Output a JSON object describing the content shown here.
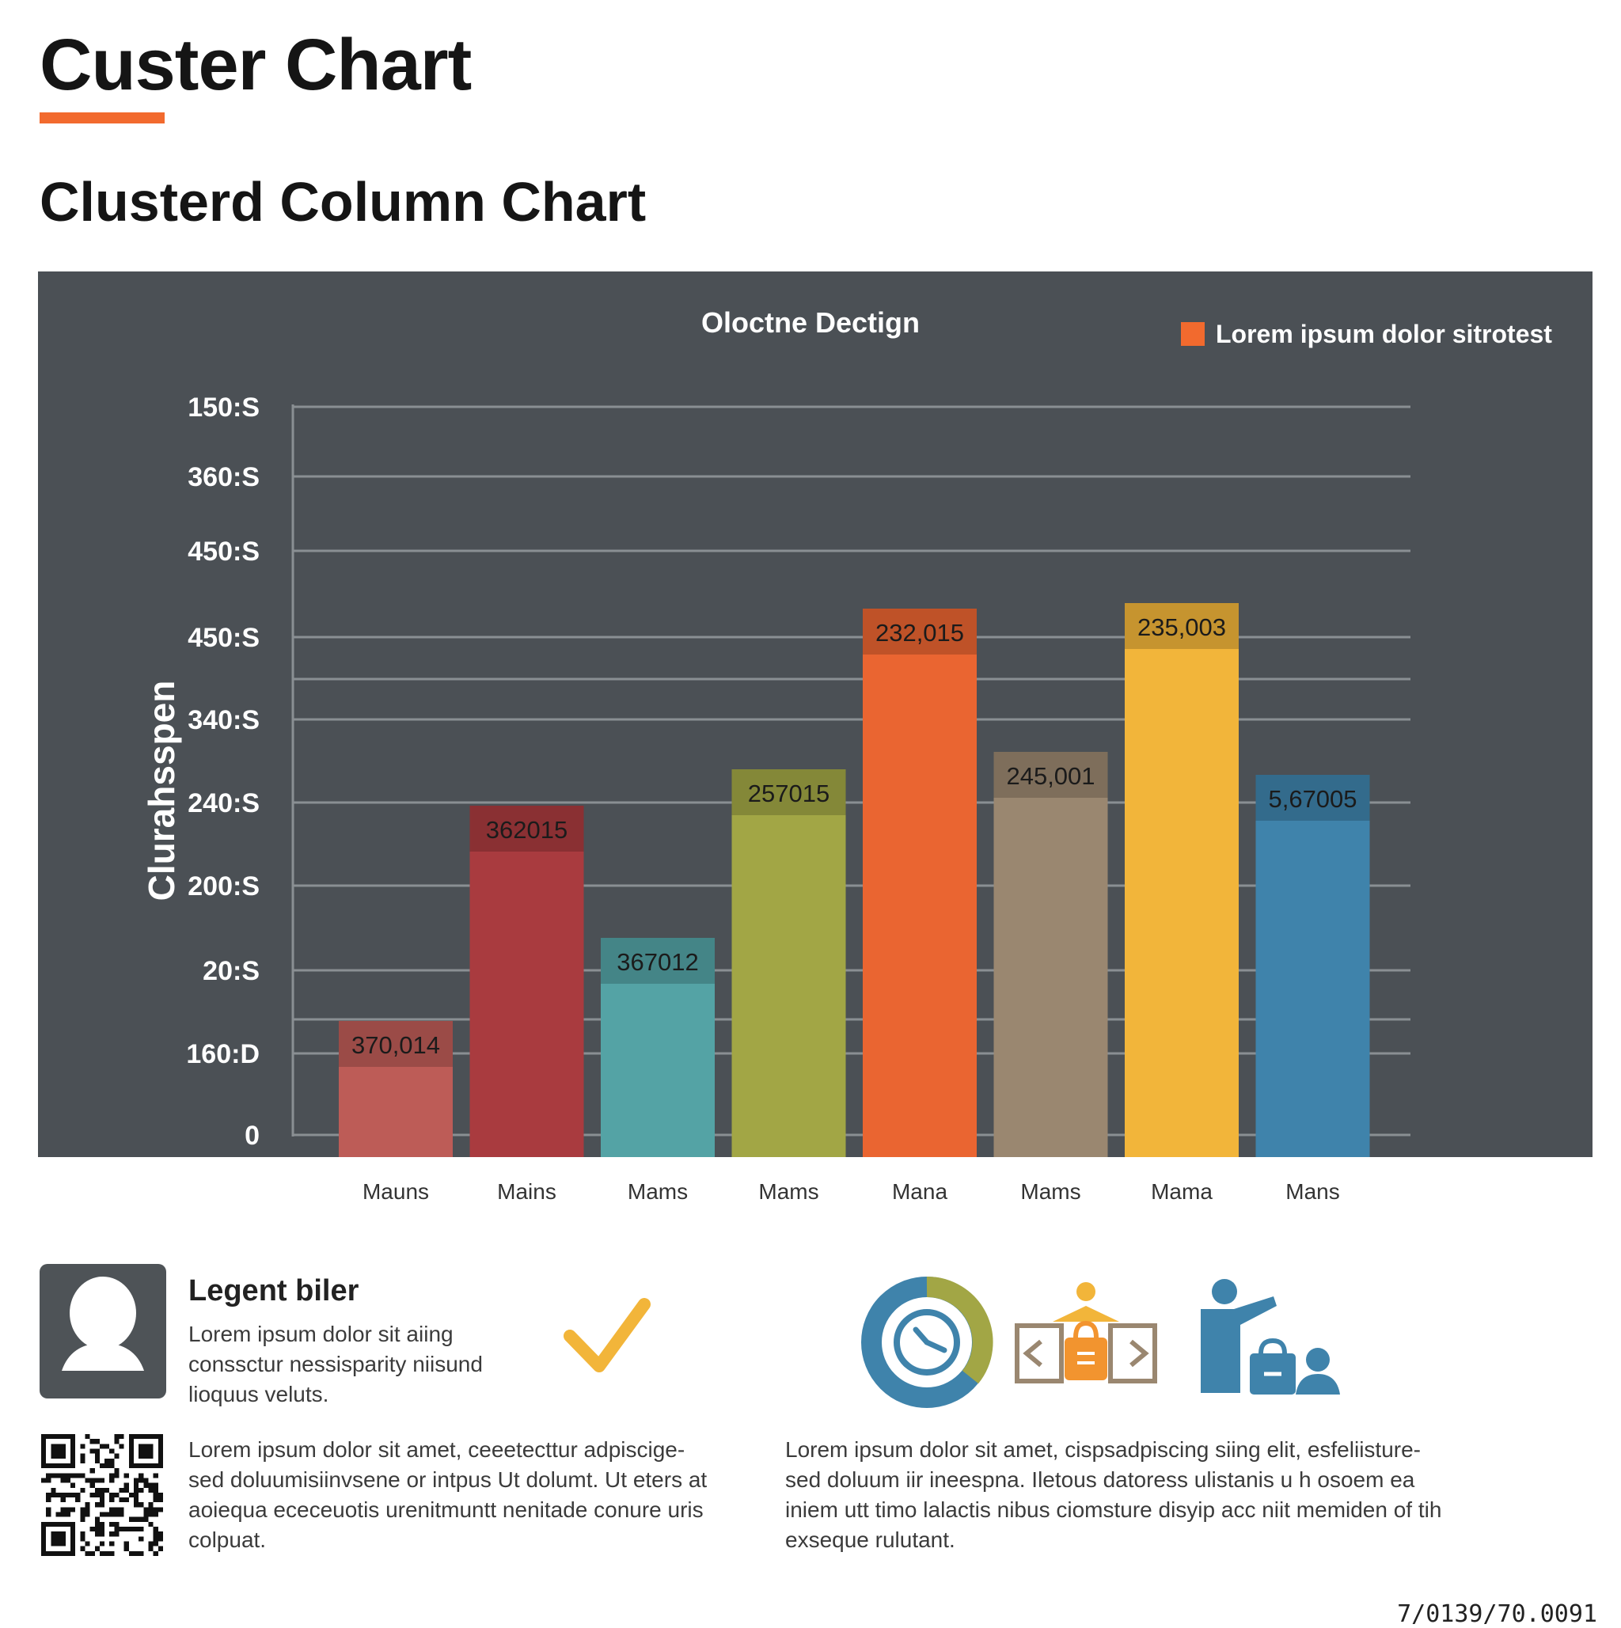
{
  "header": {
    "title": "Custer Chart",
    "subtitle": "Clusterd  Column Chart",
    "accent_color": "#f26a2e"
  },
  "chart_data": {
    "type": "bar",
    "title": "Oloctne Dectign",
    "ylabel": "Clurahsspen",
    "xlabel": "",
    "legend": {
      "label": "Lorem ipsum dolor sitrotest",
      "color": "#f26a2e",
      "position": "top-right"
    },
    "ytick_labels": [
      "0",
      "160:D",
      "20:S",
      "200:S",
      "240:S",
      "340:S",
      "450:S",
      "450:S",
      "360:S",
      "150:S"
    ],
    "ylim": [
      0,
      9.2
    ],
    "grid": true,
    "categories": [
      "Mauns",
      "Mains",
      "Mams",
      "Mams",
      "Mana",
      "Mams",
      "Mama",
      "Mans"
    ],
    "values": [
      1.44,
      4.16,
      2.49,
      4.62,
      6.65,
      4.84,
      6.72,
      4.55
    ],
    "data_labels": [
      "370,014",
      "362015",
      "367012",
      "257015",
      "232,015",
      "245,001",
      "235,003",
      "5,67005"
    ],
    "colors": [
      "#bd5c57",
      "#a93b3f",
      "#54a3a5",
      "#a2a645",
      "#ea6531",
      "#9a8770",
      "#f2b53a",
      "#3f83ab"
    ],
    "background": "#4b5055"
  },
  "legend_card": {
    "title": "Legent biler",
    "body": "Lorem ipsum dolor sit aiing\nconssctur nessisparity niisund\nlioquus veluts."
  },
  "paragraphs": {
    "left": "Lorem ipsum dolor sit amet, ceeetecttur adpiscige-\nsed doluumisiinvsene or intpus Ut dolumt. Ut eters at\naoiequa ececeuotis urenitmuntt nenitade conure uris\ncolpuat.",
    "right": "Lorem ipsum dolor sit amet, cispsadpiscing siing elit, esfeliisture-\nsed doluum iir ineespna. Iletous datoress ulistanis u h osoem ea\niniem utt timo lalactis nibus ciomsture disyip acc niit memiden of tih\nexseque rulutant."
  },
  "footer": {
    "code": "7/0139/70.0091"
  },
  "icons": [
    "user-silhouette-icon",
    "checkmark-icon",
    "gauge-icon",
    "briefcase-code-icon",
    "presenter-icon",
    "qr-code-icon"
  ]
}
